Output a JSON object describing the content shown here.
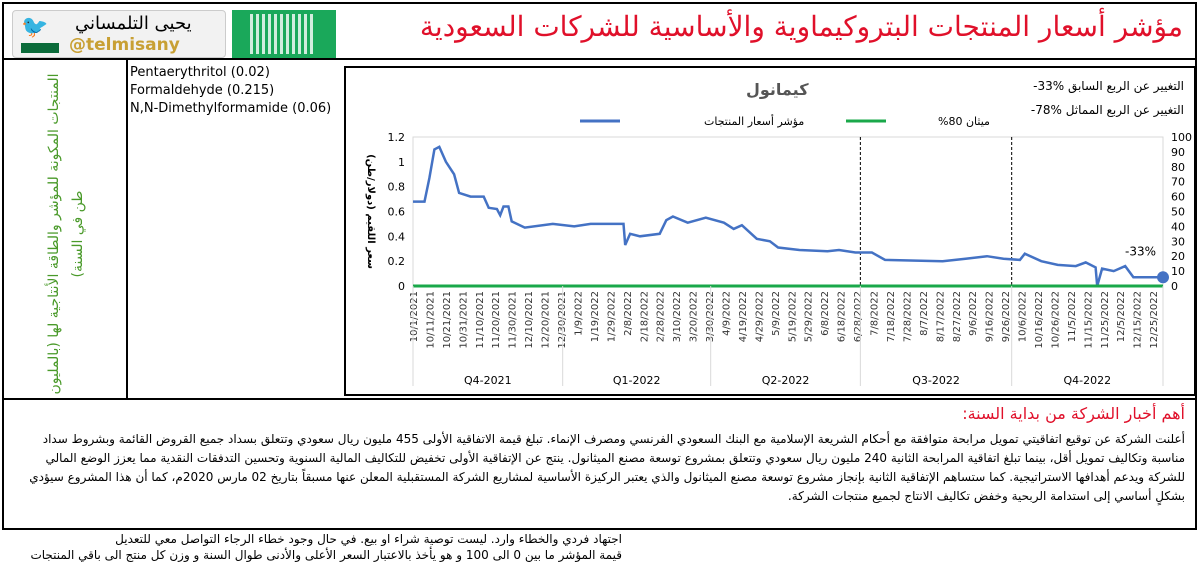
{
  "header": {
    "title": "مؤشر أسعار المنتجات البتروكيماوية والأساسية للشركات السعودية",
    "author_name": "يحيى التلمساني",
    "handle": "@telmisany",
    "qr_icon": "qr-code-icon",
    "bird_icon": "twitter-bird-icon"
  },
  "left_panel": {
    "vertical_label": "المنتجات المكونة للمؤشر والطاقة الأنتاجية لها (بالمليون طن في السنة)"
  },
  "products": [
    "Pentaerythritol (0.02)",
    "Formaldehyde (0.215)",
    "N,N-Dimethylformamide (0.06)"
  ],
  "changes": {
    "qoq": "التغيير عن الربع السابق %33-",
    "yoy": "التغيير عن الربع المماثل %78-"
  },
  "chart_data": {
    "type": "line",
    "title": "كيمانول",
    "ylabel": "سعر اللقيم (دولار/طن)",
    "ylim": [
      0,
      1.2
    ],
    "y2lim": [
      0,
      100
    ],
    "yticks": [
      0,
      0.2,
      0.4,
      0.6,
      0.8,
      1,
      1.2
    ],
    "y2ticks": [
      0,
      10,
      20,
      30,
      40,
      50,
      60,
      70,
      80,
      90,
      100
    ],
    "legend": [
      {
        "name": "مؤشر أسعار المنتجات",
        "color": "#4472c4"
      },
      {
        "name": "ميثان 80%",
        "color": "#1aa84a"
      }
    ],
    "legend_placement": "top-center",
    "xticks": [
      "10/1/2021",
      "10/11/2021",
      "10/21/2021",
      "10/31/2021",
      "11/10/2021",
      "11/20/2021",
      "11/30/2021",
      "12/10/2021",
      "12/20/2021",
      "12/30/2021",
      "1/9/2022",
      "1/19/2022",
      "1/29/2022",
      "2/8/2022",
      "2/18/2022",
      "2/28/2022",
      "3/10/2022",
      "3/20/2022",
      "3/30/2022",
      "4/9/2022",
      "4/19/2022",
      "4/29/2022",
      "5/9/2022",
      "5/19/2022",
      "5/29/2022",
      "6/8/2022",
      "6/18/2022",
      "6/28/2022",
      "7/8/2022",
      "7/18/2022",
      "7/28/2022",
      "8/7/2022",
      "8/17/2022",
      "8/27/2022",
      "9/6/2022",
      "9/16/2022",
      "9/26/2022",
      "10/6/2022",
      "10/16/2022",
      "10/26/2022",
      "11/5/2022",
      "11/15/2022",
      "11/25/2022",
      "12/5/2022",
      "12/15/2022",
      "12/25/2022"
    ],
    "quarters": [
      "Q4-2021",
      "Q1-2022",
      "Q2-2022",
      "Q3-2022",
      "Q4-2022"
    ],
    "quarter_start_days": [
      0,
      91,
      181,
      272,
      364,
      456
    ],
    "series": [
      {
        "name": "مؤشر أسعار المنتجات",
        "axis": "left",
        "day": [
          0,
          7,
          10,
          13,
          16,
          20,
          25,
          28,
          35,
          43,
          46,
          51,
          53,
          55,
          58,
          60,
          68,
          85,
          98,
          108,
          128,
          129,
          132,
          138,
          150,
          154,
          158,
          167,
          178,
          189,
          195,
          200,
          209,
          217,
          222,
          235,
          252,
          259,
          269,
          279,
          287,
          322,
          336,
          349,
          359,
          369,
          372,
          382,
          392,
          403,
          409,
          415,
          416,
          419,
          426,
          433,
          438,
          456
        ],
        "values": [
          0.68,
          0.68,
          0.87,
          1.1,
          1.12,
          1.0,
          0.9,
          0.75,
          0.72,
          0.72,
          0.63,
          0.62,
          0.57,
          0.64,
          0.64,
          0.52,
          0.47,
          0.5,
          0.48,
          0.5,
          0.5,
          0.33,
          0.42,
          0.4,
          0.42,
          0.53,
          0.56,
          0.51,
          0.55,
          0.51,
          0.46,
          0.49,
          0.38,
          0.36,
          0.31,
          0.29,
          0.28,
          0.29,
          0.27,
          0.27,
          0.21,
          0.2,
          0.22,
          0.24,
          0.22,
          0.21,
          0.26,
          0.2,
          0.17,
          0.16,
          0.19,
          0.15,
          0.0,
          0.14,
          0.12,
          0.16,
          0.07,
          0.07
        ]
      },
      {
        "name": "ميثان 80%",
        "axis": "left",
        "day": [
          0,
          456
        ],
        "values": [
          0,
          0
        ]
      }
    ],
    "annotation": "-33%"
  },
  "news": {
    "heading": "أهم أخبار الشركة من بداية السنة:",
    "body": "أعلنت الشركة عن توقيع اتفاقيتي تمويل مرابحة متوافقة مع أحكام الشريعة الإسلامية مع البنك السعودي الفرنسي ومصرف الإنماء. تبلغ قيمة الاتفاقية الأولى 455 مليون ريال سعودي وتتعلق بسداد جميع القروض القائمة وبشروط سداد مناسبة وتكاليف تمويل أقل، بينما تبلغ اتفاقية المرابحة الثانية 240 مليون ريال سعودي وتتعلق بمشروع توسعة مصنع الميثانول. ينتج عن الإتفاقية الأولى تخفيض للتكاليف المالية السنوية وتحسين التدفقات النقدية مما يعزز الوضع المالي للشركة ويدعم أهدافها الاستراتيجية. كما ستساهم الإتفاقية الثانية بإنجاز مشروع توسعة مصنع الميثانول والذي يعتبر الركيزة الأساسية لمشاريع الشركة المستقبلية المعلن عنها مسبقاً بتاريخ 02 مارس 2020م، كما أن هذا المشروع سيؤدي بشكلٍ أساسي إلى استدامة الربحية وخفض تكاليف الانتاج لجميع منتجات الشركة."
  },
  "footer": {
    "line1": "اجتهاد فردي والخطاء وارد. ليست توصية شراء او بيع. في حال وجود خطاء الرجاء التواصل معي للتعديل",
    "line2": "قيمة المؤشر ما بين 0 الى 100 و هو يأخذ بالاعتبار السعر الأعلى والأدنى طوال السنة و وزن كل منتج الى باقي المنتجات"
  }
}
